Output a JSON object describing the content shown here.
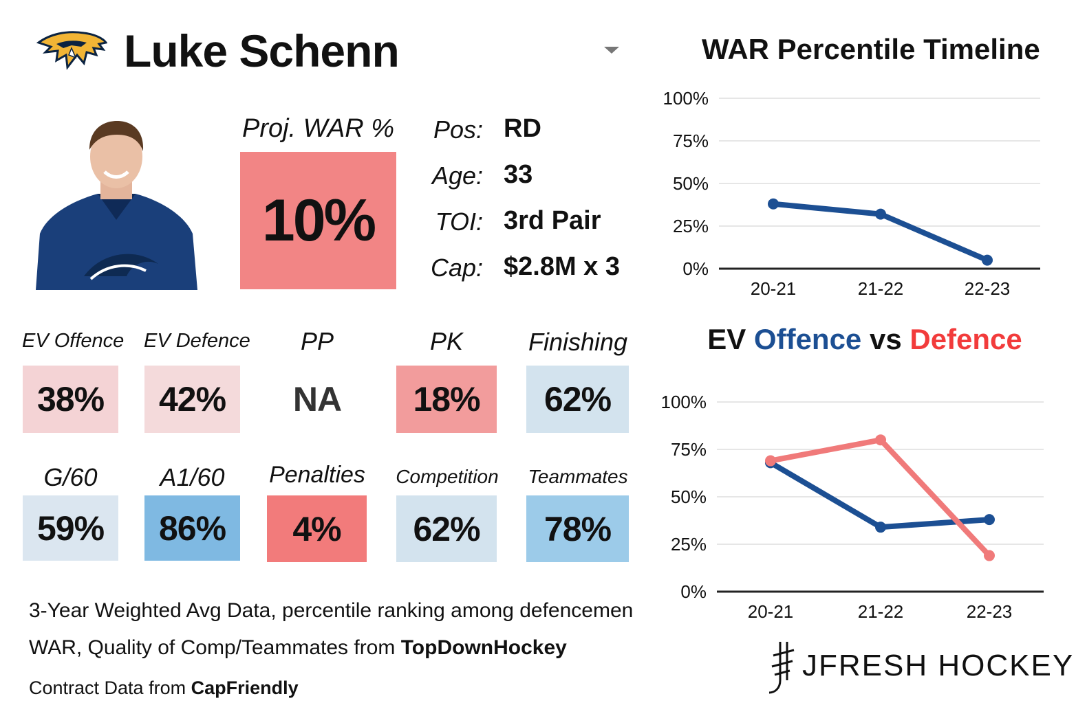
{
  "player": {
    "name": "Luke Schenn"
  },
  "colors": {
    "offence": "#1c4f93",
    "defence": "#f23b3b",
    "defence_line": "#f07a7a",
    "axis": "#222222",
    "grid": "#e6e6e6"
  },
  "icons": {
    "team_logo": "predators-logo",
    "headshot": "player-headshot",
    "brand": "jfresh-logo"
  },
  "projection": {
    "label": "Proj. WAR %",
    "value": "10%",
    "color": "#f28585"
  },
  "info": [
    {
      "key": "Pos:",
      "value": "RD"
    },
    {
      "key": "Age:",
      "value": "33"
    },
    {
      "key": "TOI:",
      "value": "3rd Pair"
    },
    {
      "key": "Cap:",
      "value": "$2.8M x 3"
    }
  ],
  "stats_row1": [
    {
      "label": "EV Offence",
      "value": "38%",
      "color": "#f4d3d5"
    },
    {
      "label": "EV Defence",
      "value": "42%",
      "color": "#f4dadb"
    },
    {
      "label": "PP",
      "value": "NA",
      "color": "#ffffff"
    },
    {
      "label": "PK",
      "value": "18%",
      "color": "#f29c9c"
    },
    {
      "label": "Finishing",
      "value": "62%",
      "color": "#d3e3ee"
    }
  ],
  "stats_row2": [
    {
      "label": "G/60",
      "value": "59%",
      "color": "#dbe6f0"
    },
    {
      "label": "A1/60",
      "value": "86%",
      "color": "#7fb9e2"
    },
    {
      "label": "Penalties",
      "value": "4%",
      "color": "#f27b7b"
    },
    {
      "label": "Competition",
      "value": "62%",
      "color": "#d3e3ee"
    },
    {
      "label": "Teammates",
      "value": "78%",
      "color": "#9ccbe9"
    }
  ],
  "footnotes": {
    "line1": "3-Year Weighted Avg Data, percentile ranking among defencemen",
    "line2_prefix": "WAR, Quality of Comp/Teammates from ",
    "line2_bold": "TopDownHockey",
    "line3_prefix": "Contract Data from ",
    "line3_bold": "CapFriendly"
  },
  "brand": {
    "text": "JFRESH HOCKEY"
  },
  "chart_data": [
    {
      "type": "line",
      "title": "WAR Percentile Timeline",
      "x": [
        "20-21",
        "21-22",
        "22-23"
      ],
      "yticks": [
        "0%",
        "25%",
        "50%",
        "75%",
        "100%"
      ],
      "ylim": [
        0,
        100
      ],
      "grid": true,
      "series": [
        {
          "values": [
            38,
            32,
            5
          ],
          "color": "#1c4f93"
        }
      ]
    },
    {
      "type": "line",
      "title_parts": {
        "a": "EV ",
        "b": "Offence",
        "c": " vs ",
        "d": "Defence"
      },
      "x": [
        "20-21",
        "21-22",
        "22-23"
      ],
      "yticks": [
        "0%",
        "25%",
        "50%",
        "75%",
        "100%"
      ],
      "ylim": [
        0,
        100
      ],
      "grid": true,
      "series": [
        {
          "name": "Offence",
          "values": [
            68,
            34,
            38
          ],
          "color": "#1c4f93"
        },
        {
          "name": "Defence",
          "values": [
            69,
            80,
            19
          ],
          "color": "#f07a7a"
        }
      ]
    }
  ]
}
